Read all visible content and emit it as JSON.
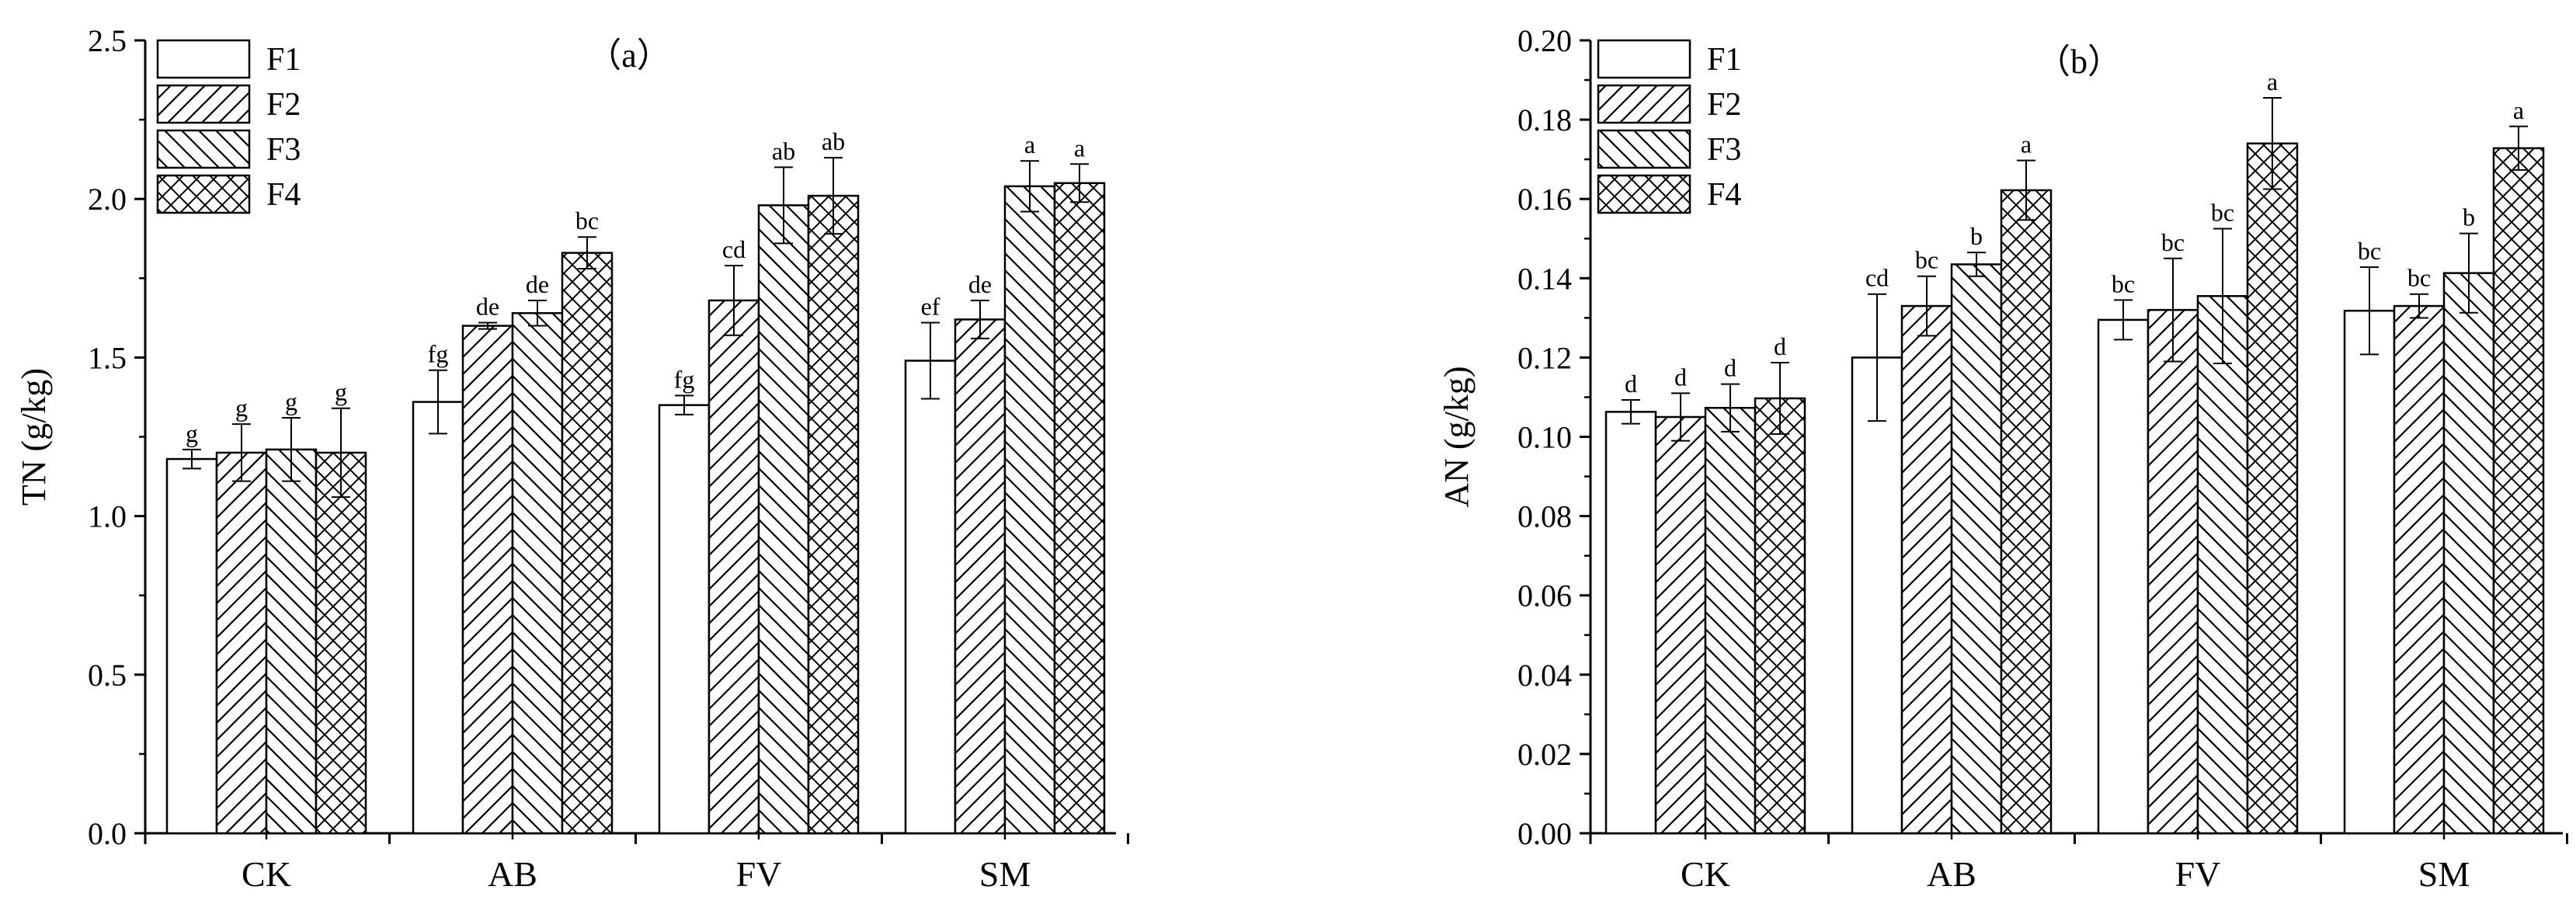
{
  "chart_data": [
    {
      "id": "a",
      "type": "bar",
      "title": "（a）",
      "ylabel": "TN (g/kg)",
      "xlabel": "",
      "ylim": [
        0,
        2.5
      ],
      "yticks": [
        "0.0",
        "0.5",
        "1.0",
        "1.5",
        "2.0",
        "2.5"
      ],
      "categories": [
        "CK",
        "AB",
        "FV",
        "SM"
      ],
      "legend": [
        "F1",
        "F2",
        "F3",
        "F4"
      ],
      "series": [
        {
          "name": "F1",
          "pattern": "none",
          "values": [
            1.18,
            1.36,
            1.35,
            1.49
          ],
          "errors": [
            0.03,
            0.1,
            0.03,
            0.12
          ],
          "labels": [
            "g",
            "fg",
            "fg",
            "ef"
          ]
        },
        {
          "name": "F2",
          "pattern": "diag-right",
          "values": [
            1.2,
            1.6,
            1.68,
            1.62
          ],
          "errors": [
            0.09,
            0.01,
            0.11,
            0.06
          ],
          "labels": [
            "g",
            "de",
            "cd",
            "de"
          ]
        },
        {
          "name": "F3",
          "pattern": "diag-left",
          "values": [
            1.21,
            1.64,
            1.98,
            2.04
          ],
          "errors": [
            0.1,
            0.04,
            0.12,
            0.08
          ],
          "labels": [
            "g",
            "de",
            "ab",
            "a"
          ]
        },
        {
          "name": "F4",
          "pattern": "cross",
          "values": [
            1.2,
            1.83,
            2.01,
            2.05
          ],
          "errors": [
            0.14,
            0.05,
            0.12,
            0.06
          ],
          "labels": [
            "g",
            "bc",
            "ab",
            "a"
          ]
        }
      ]
    },
    {
      "id": "b",
      "type": "bar",
      "title": "（b）",
      "ylabel": "AN (g/kg)",
      "xlabel": "",
      "ylim": [
        0,
        0.2
      ],
      "yticks": [
        "0.00",
        "0.02",
        "0.04",
        "0.06",
        "0.08",
        "0.10",
        "0.12",
        "0.14",
        "0.16",
        "0.18",
        "0.20"
      ],
      "categories": [
        "CK",
        "AB",
        "FV",
        "SM"
      ],
      "legend": [
        "F1",
        "F2",
        "F3",
        "F4"
      ],
      "series": [
        {
          "name": "F1",
          "pattern": "none",
          "values": [
            0.1063,
            0.12,
            0.1295,
            0.1318
          ],
          "errors": [
            0.003,
            0.016,
            0.005,
            0.011
          ],
          "labels": [
            "d",
            "cd",
            "bc",
            "bc"
          ]
        },
        {
          "name": "F2",
          "pattern": "diag-right",
          "values": [
            0.105,
            0.133,
            0.132,
            0.133
          ],
          "errors": [
            0.006,
            0.0075,
            0.013,
            0.003
          ],
          "labels": [
            "d",
            "bc",
            "bc",
            "bc"
          ]
        },
        {
          "name": "F3",
          "pattern": "diag-left",
          "values": [
            0.1073,
            0.1435,
            0.1355,
            0.1413
          ],
          "errors": [
            0.006,
            0.003,
            0.017,
            0.01
          ],
          "labels": [
            "d",
            "b",
            "bc",
            "b"
          ]
        },
        {
          "name": "F4",
          "pattern": "cross",
          "values": [
            0.1097,
            0.1622,
            0.174,
            0.1728
          ],
          "errors": [
            0.009,
            0.0075,
            0.0115,
            0.0055
          ],
          "labels": [
            "d",
            "a",
            "a",
            "a"
          ]
        }
      ]
    }
  ]
}
